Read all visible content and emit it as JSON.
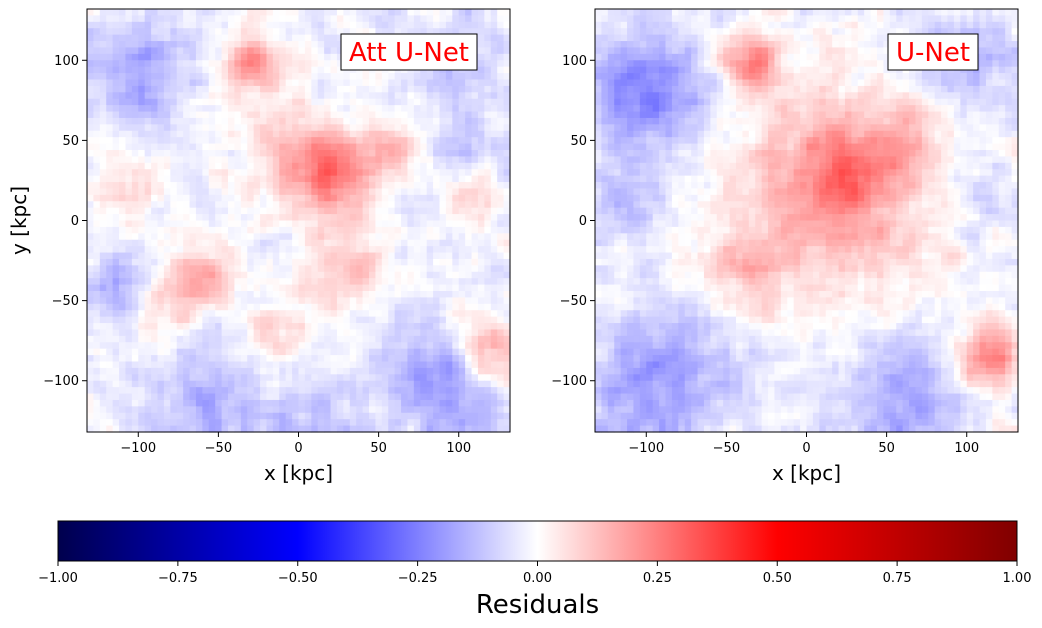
{
  "chart_data": [
    {
      "type": "heatmap",
      "title": "Att U-Net",
      "xlabel": "x [kpc]",
      "ylabel": "y [kpc]",
      "xlim": [
        -132,
        132
      ],
      "ylim": [
        -132,
        132
      ],
      "xticks": [
        -100,
        -50,
        0,
        50,
        100
      ],
      "yticks": [
        -100,
        -50,
        0,
        50,
        100
      ],
      "xtick_labels": [
        "−100",
        "−50",
        "0",
        "50",
        "100"
      ],
      "ytick_labels": [
        "−100",
        "−50",
        "0",
        "50",
        "100"
      ],
      "colormap": "seismic",
      "features": [
        {
          "x": -30,
          "y": 100,
          "sigma": 12,
          "value": 0.25
        },
        {
          "x": 22,
          "y": 30,
          "sigma": 18,
          "value": 0.28
        },
        {
          "x": -5,
          "y": 45,
          "sigma": 28,
          "value": 0.1
        },
        {
          "x": 60,
          "y": 45,
          "sigma": 10,
          "value": 0.15
        },
        {
          "x": -60,
          "y": -35,
          "sigma": 14,
          "value": 0.22
        },
        {
          "x": -90,
          "y": -55,
          "sigma": 15,
          "value": 0.14
        },
        {
          "x": 30,
          "y": -30,
          "sigma": 18,
          "value": 0.15
        },
        {
          "x": 120,
          "y": -80,
          "sigma": 15,
          "value": 0.22
        },
        {
          "x": -10,
          "y": -75,
          "sigma": 18,
          "value": 0.1
        },
        {
          "x": -110,
          "y": 20,
          "sigma": 15,
          "value": 0.12
        },
        {
          "x": 110,
          "y": 15,
          "sigma": 12,
          "value": 0.12
        },
        {
          "x": -100,
          "y": 90,
          "sigma": 22,
          "value": -0.15
        },
        {
          "x": 100,
          "y": 100,
          "sigma": 20,
          "value": -0.08
        },
        {
          "x": 90,
          "y": -105,
          "sigma": 25,
          "value": -0.18
        },
        {
          "x": -60,
          "y": -115,
          "sigma": 25,
          "value": -0.12
        },
        {
          "x": -110,
          "y": -40,
          "sigma": 15,
          "value": -0.15
        },
        {
          "x": 5,
          "y": -118,
          "sigma": 20,
          "value": -0.1
        },
        {
          "x": 110,
          "y": 45,
          "sigma": 12,
          "value": -0.08
        }
      ]
    },
    {
      "type": "heatmap",
      "title": "U-Net",
      "xlabel": "x [kpc]",
      "ylabel": "",
      "xlim": [
        -132,
        132
      ],
      "ylim": [
        -132,
        132
      ],
      "xticks": [
        -100,
        -50,
        0,
        50,
        100
      ],
      "yticks": [
        -100,
        -50,
        0,
        50,
        100
      ],
      "xtick_labels": [
        "−100",
        "−50",
        "0",
        "50",
        "100"
      ],
      "ytick_labels": [
        "−100",
        "−50",
        "0",
        "50",
        "100"
      ],
      "colormap": "seismic",
      "features": [
        {
          "x": -35,
          "y": 100,
          "sigma": 12,
          "value": 0.3
        },
        {
          "x": 20,
          "y": 20,
          "sigma": 45,
          "value": 0.22
        },
        {
          "x": 25,
          "y": 30,
          "sigma": 16,
          "value": 0.14
        },
        {
          "x": -40,
          "y": -30,
          "sigma": 20,
          "value": 0.12
        },
        {
          "x": 115,
          "y": -85,
          "sigma": 14,
          "value": 0.28
        },
        {
          "x": 60,
          "y": 50,
          "sigma": 15,
          "value": 0.1
        },
        {
          "x": -100,
          "y": 80,
          "sigma": 25,
          "value": -0.22
        },
        {
          "x": 100,
          "y": 100,
          "sigma": 22,
          "value": -0.12
        },
        {
          "x": -90,
          "y": -100,
          "sigma": 28,
          "value": -0.18
        },
        {
          "x": 60,
          "y": -110,
          "sigma": 25,
          "value": -0.15
        },
        {
          "x": -110,
          "y": 10,
          "sigma": 15,
          "value": -0.1
        },
        {
          "x": 110,
          "y": 20,
          "sigma": 15,
          "value": -0.08
        }
      ]
    }
  ],
  "colorbar": {
    "label": "Residuals",
    "range": [
      -1.0,
      1.0
    ],
    "ticks": [
      -1.0,
      -0.75,
      -0.5,
      -0.25,
      0.0,
      0.25,
      0.5,
      0.75,
      1.0
    ],
    "tick_labels": [
      "−1.00",
      "−0.75",
      "−0.50",
      "−0.25",
      "0.00",
      "0.25",
      "0.50",
      "0.75",
      "1.00"
    ],
    "colors": {
      "dark_blue": "#00004d",
      "blue": "#0000ff",
      "white": "#ffffff",
      "red": "#ff0000",
      "dark_red": "#800000"
    }
  },
  "annotation_colors": {
    "title_text": "#ff0000",
    "box_edge": "#000000"
  }
}
